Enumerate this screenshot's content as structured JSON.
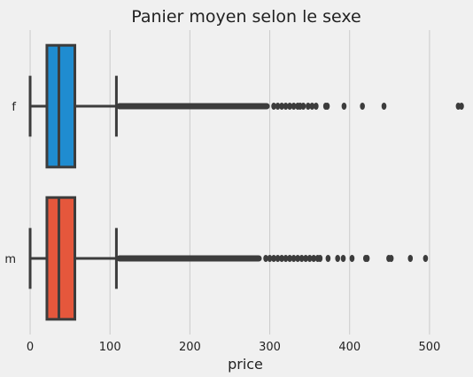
{
  "chart_data": {
    "type": "box",
    "orientation": "horizontal",
    "title": "Panier moyen selon le sexe",
    "xlabel": "price",
    "ylabel": "",
    "xlim": [
      -10,
      550
    ],
    "xticks": [
      0,
      100,
      200,
      300,
      400,
      500
    ],
    "grid": "x",
    "colors": {
      "background": "#f0f0f0",
      "grid": "#cbcbcb",
      "line": "#3c3c3c"
    },
    "series": [
      {
        "category": "f",
        "color": "#1f8cd0",
        "whisker_low": 0,
        "q1": 21,
        "median": 36,
        "q3": 56,
        "whisker_high": 108,
        "outliers_dense_range": [
          108,
          300
        ],
        "outliers": [
          305,
          310,
          315,
          320,
          325,
          330,
          335,
          338,
          342,
          348,
          353,
          358,
          370,
          372,
          393,
          416,
          443,
          536,
          540
        ]
      },
      {
        "category": "m",
        "color": "#e5573c",
        "whisker_low": 0,
        "q1": 21,
        "median": 36,
        "q3": 56,
        "whisker_high": 108,
        "outliers_dense_range": [
          108,
          290
        ],
        "outliers": [
          295,
          300,
          305,
          310,
          315,
          320,
          325,
          330,
          335,
          340,
          345,
          350,
          355,
          360,
          363,
          373,
          385,
          392,
          403,
          420,
          422,
          449,
          452,
          476,
          495
        ]
      }
    ]
  }
}
